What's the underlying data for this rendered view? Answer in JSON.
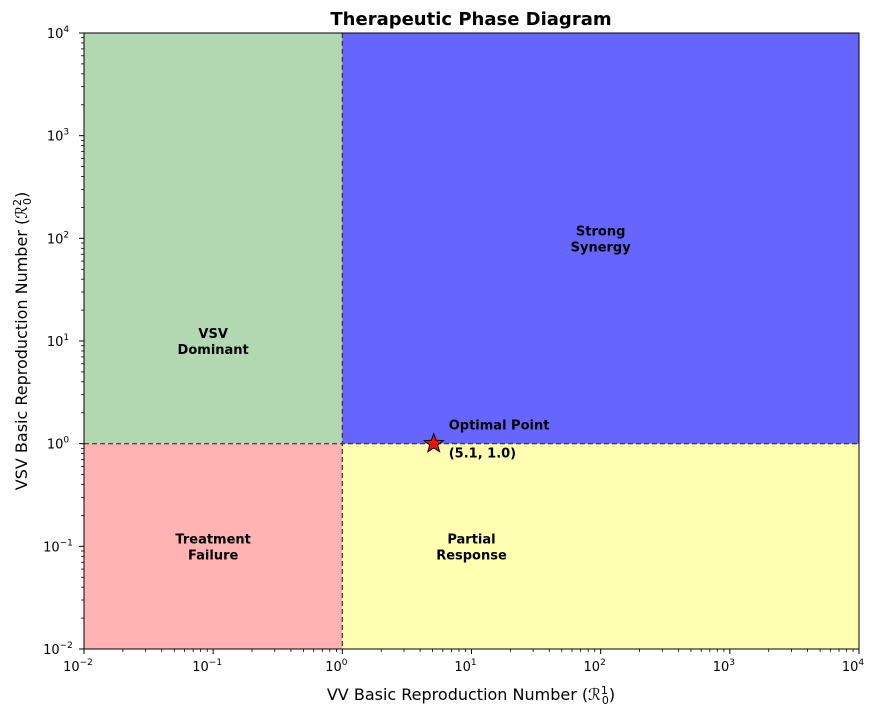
{
  "chart_data": {
    "type": "scatter",
    "title": "Therapeutic Phase Diagram",
    "xlabel": {
      "text": "VV Basic Reproduction Number (",
      "sym": "ℛ",
      "sub": "0",
      "sup": "1",
      "close": ")"
    },
    "ylabel": {
      "text": "VSV Basic Reproduction Number (",
      "sym": "ℛ",
      "sub": "0",
      "sup": "2",
      "close": ")"
    },
    "xscale": "log",
    "yscale": "log",
    "xlim": [
      0.01,
      10000
    ],
    "ylim": [
      0.01,
      10000
    ],
    "x_ticks": [
      {
        "value": 0.01,
        "base": "10",
        "exp": "−2"
      },
      {
        "value": 0.1,
        "base": "10",
        "exp": "−1"
      },
      {
        "value": 1,
        "base": "10",
        "exp": "0"
      },
      {
        "value": 10,
        "base": "10",
        "exp": "1"
      },
      {
        "value": 100,
        "base": "10",
        "exp": "2"
      },
      {
        "value": 1000,
        "base": "10",
        "exp": "3"
      },
      {
        "value": 10000,
        "base": "10",
        "exp": "4"
      }
    ],
    "y_ticks": [
      {
        "value": 0.01,
        "base": "10",
        "exp": "−2"
      },
      {
        "value": 0.1,
        "base": "10",
        "exp": "−1"
      },
      {
        "value": 1,
        "base": "10",
        "exp": "0"
      },
      {
        "value": 10,
        "base": "10",
        "exp": "1"
      },
      {
        "value": 100,
        "base": "10",
        "exp": "2"
      },
      {
        "value": 1000,
        "base": "10",
        "exp": "3"
      },
      {
        "value": 10000,
        "base": "10",
        "exp": "4"
      }
    ],
    "thresholds": {
      "x": 1,
      "y": 1
    },
    "regions": [
      {
        "id": "treatment-failure",
        "lines": [
          "Treatment",
          "Failure"
        ],
        "x_range": [
          0.01,
          1
        ],
        "y_range": [
          0.01,
          1
        ],
        "label_at": [
          0.1,
          0.1
        ],
        "color": "#ffb3b3"
      },
      {
        "id": "vsv-dominant",
        "lines": [
          "VSV",
          "Dominant"
        ],
        "x_range": [
          0.01,
          1
        ],
        "y_range": [
          1,
          10000
        ],
        "label_at": [
          0.1,
          10
        ],
        "color": "#b2d8b2"
      },
      {
        "id": "partial-response",
        "lines": [
          "Partial",
          "Response"
        ],
        "x_range": [
          1,
          10000
        ],
        "y_range": [
          0.01,
          1
        ],
        "label_at": [
          10,
          0.1
        ],
        "color": "#ffffb2"
      },
      {
        "id": "strong-synergy",
        "lines": [
          "Strong",
          "Synergy"
        ],
        "x_range": [
          1,
          10000
        ],
        "y_range": [
          1,
          10000
        ],
        "label_at": [
          100,
          100
        ],
        "color": "#6666ff"
      }
    ],
    "points": [
      {
        "x": 5.1,
        "y": 1.0,
        "label": "Optimal Point",
        "coord_text": "(5.1, 1.0)",
        "marker": "star",
        "color": "#ee1111"
      }
    ],
    "grid": false,
    "legend": "none"
  }
}
